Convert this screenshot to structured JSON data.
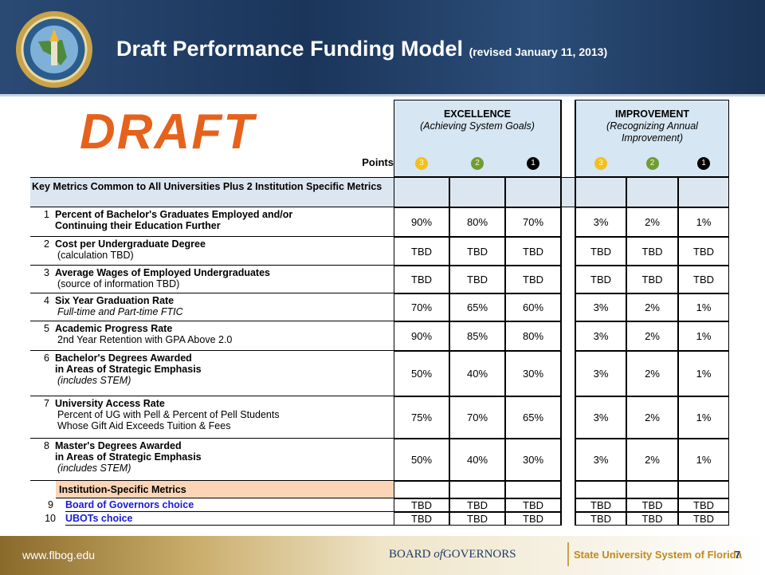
{
  "header": {
    "title": "Draft Performance Funding Model",
    "subtitle": "(revised January 11, 2013)"
  },
  "watermark": "DRAFT",
  "table": {
    "groups": [
      {
        "title": "EXCELLENCE",
        "subtitle": "(Achieving System Goals)"
      },
      {
        "title": "IMPROVEMENT",
        "subtitle": "(Recognizing Annual Improvement)"
      }
    ],
    "points_label": "Points",
    "points": [
      "3",
      "2",
      "1",
      "3",
      "2",
      "1"
    ],
    "section": "Key Metrics Common to All Universities Plus 2 Institution Specific Metrics",
    "rows": [
      {
        "number": "1",
        "title": [
          "Percent of Bachelor's Graduates Employed and/or",
          "Continuing their Education Further"
        ],
        "note": [],
        "note_italic": false,
        "values": [
          "90%",
          "80%",
          "70%",
          "3%",
          "2%",
          "1%"
        ]
      },
      {
        "number": "2",
        "title": [
          "Cost per Undergraduate Degree"
        ],
        "note": [
          "(calculation TBD)"
        ],
        "note_italic": false,
        "values": [
          "TBD",
          "TBD",
          "TBD",
          "TBD",
          "TBD",
          "TBD"
        ]
      },
      {
        "number": "3",
        "title": [
          "Average Wages of Employed Undergraduates"
        ],
        "note": [
          "(source of information TBD)"
        ],
        "note_italic": false,
        "values": [
          "TBD",
          "TBD",
          "TBD",
          "TBD",
          "TBD",
          "TBD"
        ]
      },
      {
        "number": "4",
        "title": [
          "Six Year Graduation Rate"
        ],
        "note": [
          "Full-time and Part-time FTIC"
        ],
        "note_italic": true,
        "values": [
          "70%",
          "65%",
          "60%",
          "3%",
          "2%",
          "1%"
        ]
      },
      {
        "number": "5",
        "title": [
          "Academic Progress Rate"
        ],
        "note": [
          "2nd Year Retention with GPA Above 2.0"
        ],
        "note_italic": false,
        "values": [
          "90%",
          "85%",
          "80%",
          "3%",
          "2%",
          "1%"
        ]
      },
      {
        "number": "6",
        "title": [
          "Bachelor's Degrees Awarded",
          "in Areas of Strategic Emphasis"
        ],
        "note": [
          "(includes STEM)"
        ],
        "note_italic": true,
        "values": [
          "50%",
          "40%",
          "30%",
          "3%",
          "2%",
          "1%"
        ]
      },
      {
        "number": "7",
        "title": [
          "University Access Rate"
        ],
        "note": [
          "Percent of UG with Pell & Percent of Pell Students",
          "Whose Gift Aid Exceeds Tuition & Fees"
        ],
        "note_italic": false,
        "values": [
          "75%",
          "70%",
          "65%",
          "3%",
          "2%",
          "1%"
        ]
      },
      {
        "number": "8",
        "title": [
          "Master's Degrees Awarded",
          "in Areas of Strategic Emphasis"
        ],
        "note": [
          "(includes STEM)"
        ],
        "note_italic": true,
        "values": [
          "50%",
          "40%",
          "30%",
          "3%",
          "2%",
          "1%"
        ]
      }
    ],
    "subsection": "Institution-Specific Metrics",
    "choice_rows": [
      {
        "number": "9",
        "title": "Board of Governors choice",
        "values": [
          "TBD",
          "TBD",
          "TBD",
          "TBD",
          "TBD",
          "TBD"
        ]
      },
      {
        "number": "10",
        "title": "UBOTs choice",
        "values": [
          "TBD",
          "TBD",
          "TBD",
          "TBD",
          "TBD",
          "TBD"
        ]
      }
    ]
  },
  "footer": {
    "url": "www.flbog.edu",
    "board": [
      "BOARD",
      "of",
      "GOVERNORS"
    ],
    "system": "State University System of Florida",
    "page": "7"
  }
}
